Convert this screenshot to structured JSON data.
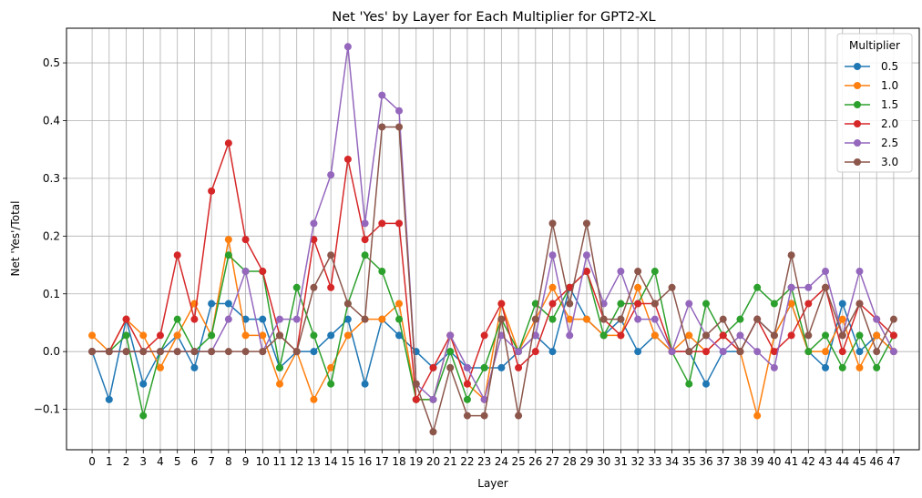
{
  "chart_data": {
    "type": "line",
    "title": "Net 'Yes' by Layer for Each Multiplier for GPT2-XL",
    "xlabel": "Layer",
    "ylabel": "Net 'Yes'/Total",
    "x": [
      0,
      1,
      2,
      3,
      4,
      5,
      6,
      7,
      8,
      9,
      10,
      11,
      12,
      13,
      14,
      15,
      16,
      17,
      18,
      19,
      20,
      21,
      22,
      23,
      24,
      25,
      26,
      27,
      28,
      29,
      30,
      31,
      32,
      33,
      34,
      35,
      36,
      37,
      38,
      39,
      40,
      41,
      42,
      43,
      44,
      45,
      46,
      47
    ],
    "xlim": [
      -1.5,
      48.5
    ],
    "ylim": [
      -0.17,
      0.56
    ],
    "yticks": [
      -0.1,
      0.0,
      0.1,
      0.2,
      0.3,
      0.4,
      0.5
    ],
    "ytick_labels": [
      "−0.1",
      "0.0",
      "0.1",
      "0.2",
      "0.3",
      "0.4",
      "0.5"
    ],
    "grid": true,
    "legend": {
      "title": "Multiplier",
      "placement": "top-right"
    },
    "series": [
      {
        "name": "0.5",
        "color": "#1f77b4",
        "values": [
          0.0,
          -0.083,
          0.056,
          -0.056,
          0.0,
          0.028,
          -0.028,
          0.083,
          0.083,
          0.056,
          0.056,
          -0.028,
          0.0,
          0.0,
          0.028,
          0.056,
          -0.056,
          0.056,
          0.028,
          0.0,
          -0.028,
          0.0,
          -0.028,
          -0.028,
          -0.028,
          0.0,
          0.028,
          0.0,
          0.111,
          0.056,
          0.028,
          0.056,
          0.0,
          0.028,
          0.0,
          0.0,
          -0.056,
          0.0,
          0.0,
          0.056,
          0.028,
          0.083,
          0.0,
          -0.028,
          0.083,
          0.0,
          0.028,
          0.0
        ]
      },
      {
        "name": "1.0",
        "color": "#ff7f0e",
        "values": [
          0.028,
          0.0,
          0.056,
          0.028,
          -0.028,
          0.028,
          0.083,
          0.028,
          0.194,
          0.028,
          0.028,
          -0.056,
          0.0,
          -0.083,
          -0.028,
          0.028,
          0.056,
          0.056,
          0.083,
          -0.083,
          -0.083,
          0.028,
          -0.056,
          -0.083,
          0.083,
          0.0,
          0.056,
          0.111,
          0.056,
          0.056,
          0.028,
          0.028,
          0.111,
          0.028,
          0.0,
          0.028,
          0.0,
          0.028,
          0.0,
          -0.111,
          0.028,
          0.083,
          0.0,
          0.0,
          0.056,
          -0.028,
          0.028,
          0.0
        ]
      },
      {
        "name": "1.5",
        "color": "#2ca02c",
        "values": [
          0.0,
          0.0,
          0.028,
          -0.111,
          0.0,
          0.056,
          0.0,
          0.028,
          0.167,
          0.139,
          0.139,
          -0.028,
          0.111,
          0.028,
          -0.056,
          0.083,
          0.167,
          0.139,
          0.056,
          -0.083,
          -0.083,
          0.0,
          -0.083,
          -0.028,
          0.056,
          0.0,
          0.083,
          0.056,
          0.111,
          0.139,
          0.028,
          0.083,
          0.083,
          0.139,
          0.0,
          -0.056,
          0.083,
          0.028,
          0.056,
          0.111,
          0.083,
          0.111,
          0.0,
          0.028,
          -0.028,
          0.028,
          -0.028,
          0.028
        ]
      },
      {
        "name": "2.0",
        "color": "#d62728",
        "values": [
          0.0,
          0.0,
          0.056,
          0.0,
          0.028,
          0.167,
          0.056,
          0.278,
          0.361,
          0.194,
          0.139,
          0.028,
          0.0,
          0.194,
          0.111,
          0.333,
          0.194,
          0.222,
          0.222,
          -0.083,
          -0.028,
          0.028,
          -0.056,
          0.028,
          0.083,
          -0.028,
          0.0,
          0.083,
          0.111,
          0.139,
          0.056,
          0.028,
          0.083,
          0.083,
          0.0,
          0.0,
          0.0,
          0.028,
          0.0,
          0.056,
          0.0,
          0.028,
          0.083,
          0.111,
          0.0,
          0.083,
          0.056,
          0.028
        ]
      },
      {
        "name": "2.5",
        "color": "#9467bd",
        "values": [
          0.0,
          0.0,
          0.0,
          0.0,
          0.0,
          0.0,
          0.0,
          0.0,
          0.056,
          0.139,
          0.0,
          0.056,
          0.056,
          0.222,
          0.306,
          0.528,
          0.222,
          0.444,
          0.417,
          -0.056,
          -0.083,
          0.028,
          -0.028,
          -0.083,
          0.028,
          0.0,
          0.028,
          0.167,
          0.028,
          0.167,
          0.083,
          0.139,
          0.056,
          0.056,
          0.0,
          0.083,
          0.028,
          0.0,
          0.028,
          0.0,
          -0.028,
          0.111,
          0.111,
          0.139,
          0.028,
          0.139,
          0.056,
          0.0
        ]
      },
      {
        "name": "3.0",
        "color": "#8c564b",
        "values": [
          0.0,
          0.0,
          0.0,
          0.0,
          0.0,
          0.0,
          0.0,
          0.0,
          0.0,
          0.0,
          0.0,
          0.028,
          0.0,
          0.111,
          0.167,
          0.083,
          0.056,
          0.389,
          0.389,
          -0.056,
          -0.139,
          -0.028,
          -0.111,
          -0.111,
          0.056,
          -0.111,
          0.056,
          0.222,
          0.083,
          0.222,
          0.056,
          0.056,
          0.139,
          0.083,
          0.111,
          0.0,
          0.028,
          0.056,
          0.0,
          0.056,
          0.028,
          0.167,
          0.028,
          0.111,
          0.028,
          0.083,
          0.0,
          0.056
        ]
      }
    ]
  }
}
